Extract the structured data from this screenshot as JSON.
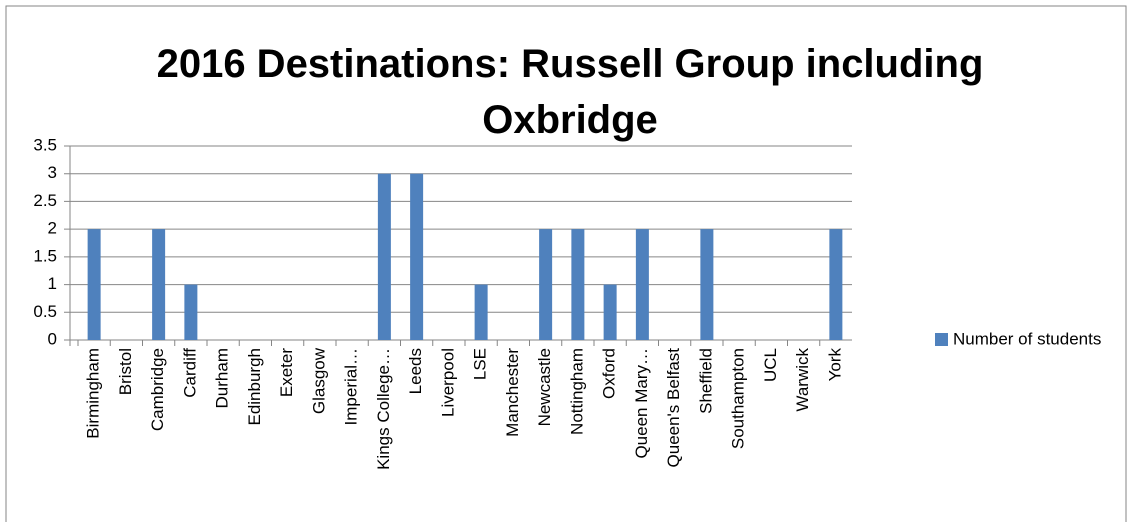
{
  "chart_data": {
    "type": "bar",
    "title": "2016 Destinations: Russell Group including Oxbridge",
    "categories": [
      "Birmingham",
      "Bristol",
      "Cambridge",
      "Cardiff",
      "Durham",
      "Edinburgh",
      "Exeter",
      "Glasgow",
      "Imperial…",
      "Kings College…",
      "Leeds",
      "Liverpool",
      "LSE",
      "Manchester",
      "Newcastle",
      "Nottingham",
      "Oxford",
      "Queen Mary…",
      "Queen's Belfast",
      "Sheffield",
      "Southampton",
      "UCL",
      "Warwick",
      "York"
    ],
    "series": [
      {
        "name": "Number of students",
        "color": "#4f81bd",
        "values": [
          2,
          0,
          2,
          1,
          0,
          0,
          0,
          0,
          0,
          3,
          3,
          0,
          1,
          0,
          2,
          2,
          1,
          2,
          0,
          2,
          0,
          0,
          0,
          2
        ]
      }
    ],
    "ylim": [
      0,
      3.5
    ],
    "yticks": [
      0,
      0.5,
      1,
      1.5,
      2,
      2.5,
      3,
      3.5
    ],
    "grid": true,
    "legend": "right"
  }
}
